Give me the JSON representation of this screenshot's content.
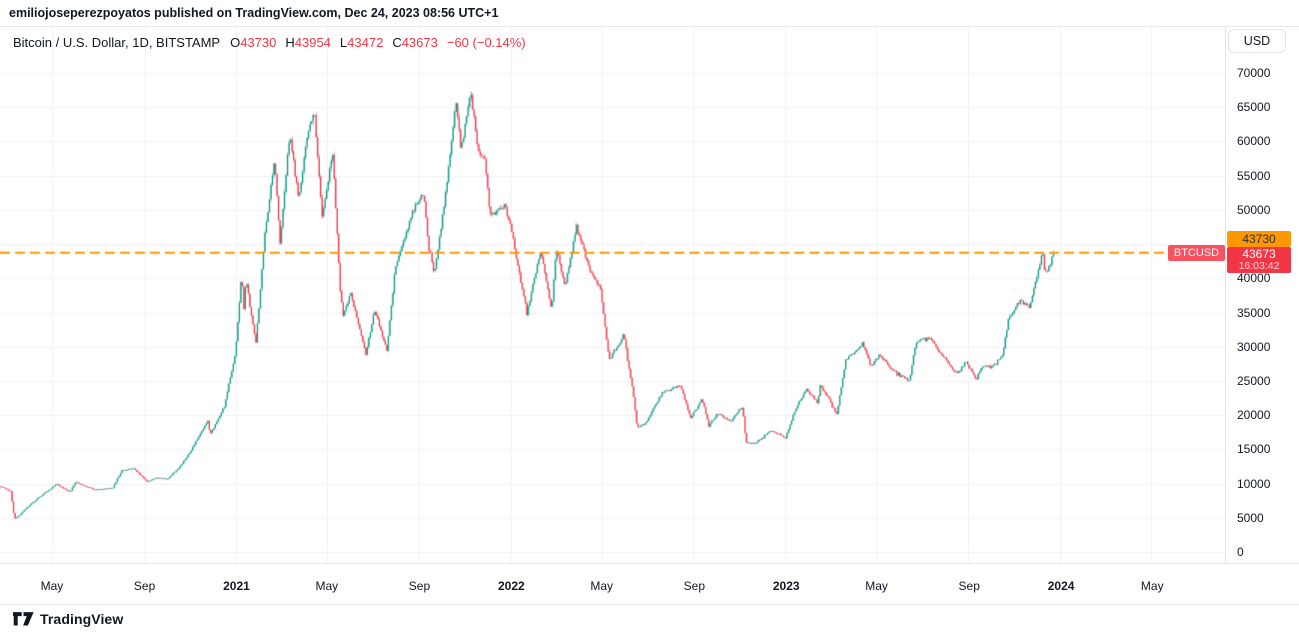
{
  "attribution": {
    "text": "emiliojoseperezpoyatos published on TradingView.com, Dec 24, 2023 08:56 UTC+1"
  },
  "legend": {
    "symbol_title": "Bitcoin / U.S. Dollar, 1D, BITSTAMP",
    "ohlc": [
      {
        "key": "O",
        "value": "43730"
      },
      {
        "key": "H",
        "value": "43954"
      },
      {
        "key": "L",
        "value": "43472"
      },
      {
        "key": "C",
        "value": "43673"
      }
    ],
    "change": "−60 (−0.14%)"
  },
  "currency_button": "USD",
  "price_axis": {
    "line_label": "43730",
    "price_label": "43673",
    "countdown": "16:03:42",
    "symbol_tag": "BTCUSD"
  },
  "footer": {
    "brand": "TradingView"
  },
  "colors": {
    "up": "#089981",
    "down": "#F23645",
    "level_line": "#FF9800",
    "grid": "#F0F2F7",
    "text": "#131722",
    "axis_border": "#E0E3EB",
    "price_label_bg": "#F23645",
    "line_label_bg": "#FF9800",
    "tag_bg": "#F7525F"
  },
  "chart_data": {
    "type": "candlestick",
    "title": "Bitcoin / U.S. Dollar",
    "symbol": "BTCUSD",
    "exchange": "BITSTAMP",
    "interval": "1D",
    "last_bar": {
      "open": 43730,
      "high": 43954,
      "low": 43472,
      "close": 43673,
      "change": -60,
      "change_pct": -0.14
    },
    "horizontal_line_level": 43730,
    "y_axis": {
      "min": 0,
      "max": 72000,
      "tick_step": 5000,
      "ticks": [
        70000,
        65000,
        60000,
        55000,
        50000,
        45000,
        40000,
        35000,
        30000,
        25000,
        20000,
        15000,
        10000,
        5000,
        0
      ],
      "labeled_ticks": [
        70000,
        65000,
        60000,
        55000,
        50000,
        40000,
        35000,
        30000,
        25000,
        20000,
        15000,
        10000,
        5000,
        0
      ]
    },
    "x_axis": {
      "start_date": "2020-02-22",
      "end_date": "2024-07-05",
      "ticks": [
        {
          "label": "May",
          "date": "2020-05-01",
          "bold": false
        },
        {
          "label": "Sep",
          "date": "2020-09-01",
          "bold": false
        },
        {
          "label": "2021",
          "date": "2021-01-01",
          "bold": true
        },
        {
          "label": "May",
          "date": "2021-05-01",
          "bold": false
        },
        {
          "label": "Sep",
          "date": "2021-09-01",
          "bold": false
        },
        {
          "label": "2022",
          "date": "2022-01-01",
          "bold": true
        },
        {
          "label": "May",
          "date": "2022-05-01",
          "bold": false
        },
        {
          "label": "Sep",
          "date": "2022-09-01",
          "bold": false
        },
        {
          "label": "2023",
          "date": "2023-01-01",
          "bold": true
        },
        {
          "label": "May",
          "date": "2023-05-01",
          "bold": false
        },
        {
          "label": "Sep",
          "date": "2023-09-01",
          "bold": false
        },
        {
          "label": "2024",
          "date": "2024-01-01",
          "bold": true
        },
        {
          "label": "May",
          "date": "2024-05-01",
          "bold": false
        }
      ]
    },
    "price_path_anchors": [
      [
        "2020-02-22",
        9650
      ],
      [
        "2020-03-07",
        8900
      ],
      [
        "2020-03-12",
        4900
      ],
      [
        "2020-03-16",
        5100
      ],
      [
        "2020-04-06",
        7300
      ],
      [
        "2020-05-07",
        9950
      ],
      [
        "2020-05-25",
        8750
      ],
      [
        "2020-06-01",
        10200
      ],
      [
        "2020-06-27",
        9050
      ],
      [
        "2020-07-21",
        9400
      ],
      [
        "2020-08-01",
        11800
      ],
      [
        "2020-08-17",
        12300
      ],
      [
        "2020-09-05",
        10250
      ],
      [
        "2020-09-20",
        10950
      ],
      [
        "2020-10-01",
        10600
      ],
      [
        "2020-10-21",
        12850
      ],
      [
        "2020-11-06",
        15600
      ],
      [
        "2020-11-24",
        19150
      ],
      [
        "2020-11-27",
        17150
      ],
      [
        "2020-12-16",
        21300
      ],
      [
        "2020-12-31",
        29000
      ],
      [
        "2021-01-08",
        40800
      ],
      [
        "2021-01-11",
        35600
      ],
      [
        "2021-01-14",
        39500
      ],
      [
        "2021-01-27",
        30400
      ],
      [
        "2021-02-08",
        46400
      ],
      [
        "2021-02-21",
        57500
      ],
      [
        "2021-02-28",
        45100
      ],
      [
        "2021-03-13",
        61200
      ],
      [
        "2021-03-25",
        51300
      ],
      [
        "2021-04-02",
        59000
      ],
      [
        "2021-04-14",
        64800
      ],
      [
        "2021-04-25",
        49000
      ],
      [
        "2021-05-09",
        58300
      ],
      [
        "2021-05-19",
        38500
      ],
      [
        "2021-05-23",
        34700
      ],
      [
        "2021-06-02",
        37600
      ],
      [
        "2021-06-22",
        29000
      ],
      [
        "2021-07-04",
        35300
      ],
      [
        "2021-07-20",
        29500
      ],
      [
        "2021-07-31",
        41500
      ],
      [
        "2021-08-22",
        49300
      ],
      [
        "2021-09-07",
        52700
      ],
      [
        "2021-09-13",
        44900
      ],
      [
        "2021-09-21",
        40700
      ],
      [
        "2021-10-05",
        51500
      ],
      [
        "2021-10-20",
        66000
      ],
      [
        "2021-10-27",
        58500
      ],
      [
        "2021-11-08",
        67500
      ],
      [
        "2021-11-19",
        58100
      ],
      [
        "2021-11-28",
        57300
      ],
      [
        "2021-12-04",
        49200
      ],
      [
        "2021-12-23",
        50800
      ],
      [
        "2022-01-01",
        47300
      ],
      [
        "2022-01-22",
        35000
      ],
      [
        "2022-02-04",
        41500
      ],
      [
        "2022-02-10",
        44000
      ],
      [
        "2022-02-24",
        35000
      ],
      [
        "2022-03-02",
        44400
      ],
      [
        "2022-03-14",
        39000
      ],
      [
        "2022-03-29",
        47400
      ],
      [
        "2022-04-18",
        40800
      ],
      [
        "2022-04-30",
        38600
      ],
      [
        "2022-05-09",
        30100
      ],
      [
        "2022-05-12",
        28100
      ],
      [
        "2022-05-31",
        31800
      ],
      [
        "2022-06-13",
        22500
      ],
      [
        "2022-06-18",
        18000
      ],
      [
        "2022-07-02",
        19300
      ],
      [
        "2022-07-20",
        23300
      ],
      [
        "2022-08-14",
        24400
      ],
      [
        "2022-08-28",
        19600
      ],
      [
        "2022-09-12",
        22400
      ],
      [
        "2022-09-21",
        18500
      ],
      [
        "2022-10-04",
        20300
      ],
      [
        "2022-10-20",
        19100
      ],
      [
        "2022-11-05",
        21300
      ],
      [
        "2022-11-09",
        16000
      ],
      [
        "2022-11-21",
        15800
      ],
      [
        "2022-12-14",
        17800
      ],
      [
        "2023-01-01",
        16600
      ],
      [
        "2023-01-14",
        20900
      ],
      [
        "2023-01-29",
        23700
      ],
      [
        "2023-02-13",
        21800
      ],
      [
        "2023-02-16",
        24600
      ],
      [
        "2023-03-10",
        20200
      ],
      [
        "2023-03-22",
        28100
      ],
      [
        "2023-04-14",
        30400
      ],
      [
        "2023-04-24",
        27300
      ],
      [
        "2023-05-06",
        28900
      ],
      [
        "2023-05-25",
        26300
      ],
      [
        "2023-06-15",
        25100
      ],
      [
        "2023-06-23",
        30700
      ],
      [
        "2023-07-13",
        31400
      ],
      [
        "2023-07-24",
        29200
      ],
      [
        "2023-08-17",
        26100
      ],
      [
        "2023-08-29",
        27700
      ],
      [
        "2023-09-11",
        25200
      ],
      [
        "2023-09-19",
        27200
      ],
      [
        "2023-10-01",
        27000
      ],
      [
        "2023-10-16",
        28500
      ],
      [
        "2023-10-24",
        33900
      ],
      [
        "2023-11-09",
        36700
      ],
      [
        "2023-11-21",
        35800
      ],
      [
        "2023-12-05",
        41900
      ],
      [
        "2023-12-08",
        44200
      ],
      [
        "2023-12-11",
        41300
      ],
      [
        "2023-12-17",
        41400
      ],
      [
        "2023-12-22",
        43900
      ],
      [
        "2023-12-24",
        43673
      ]
    ]
  }
}
